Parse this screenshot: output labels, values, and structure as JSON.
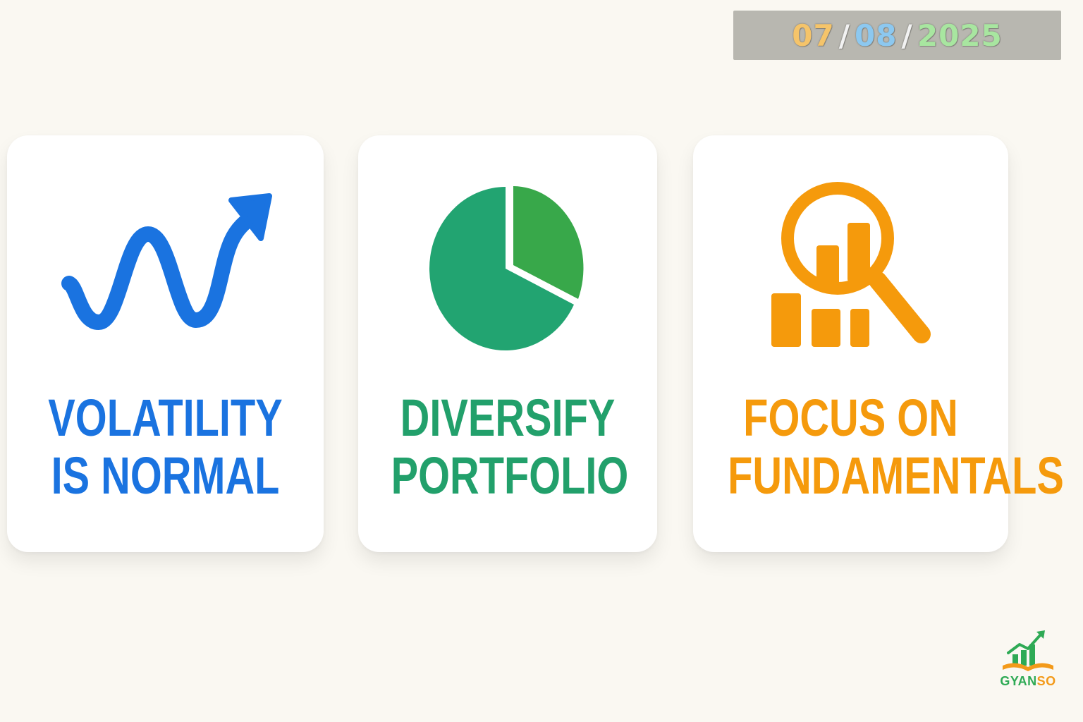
{
  "date": {
    "day": "07",
    "month": "08",
    "year": "2025",
    "separator": "/",
    "colors": {
      "day": "#f5c46a",
      "month": "#8cc8f0",
      "year": "#a8e6a0"
    }
  },
  "cards": [
    {
      "icon": "wavy-up-arrow-icon",
      "title_line1": "VOLATILITY",
      "title_line2": "IS NORMAL",
      "color": "#1a73e0"
    },
    {
      "icon": "pie-chart-icon",
      "title_line1": "DIVERSIFY",
      "title_line2": "PORTFOLIO",
      "color": "#22a06b"
    },
    {
      "icon": "magnifier-bar-chart-icon",
      "title_line1": "FOCUS ON",
      "title_line2": "FUNDAMENTALS",
      "color": "#f59a0c"
    }
  ],
  "logo": {
    "text_part1": "GYAN",
    "text_part2": "SO",
    "colors": {
      "green": "#2eaa55",
      "orange": "#f39a1a"
    }
  }
}
